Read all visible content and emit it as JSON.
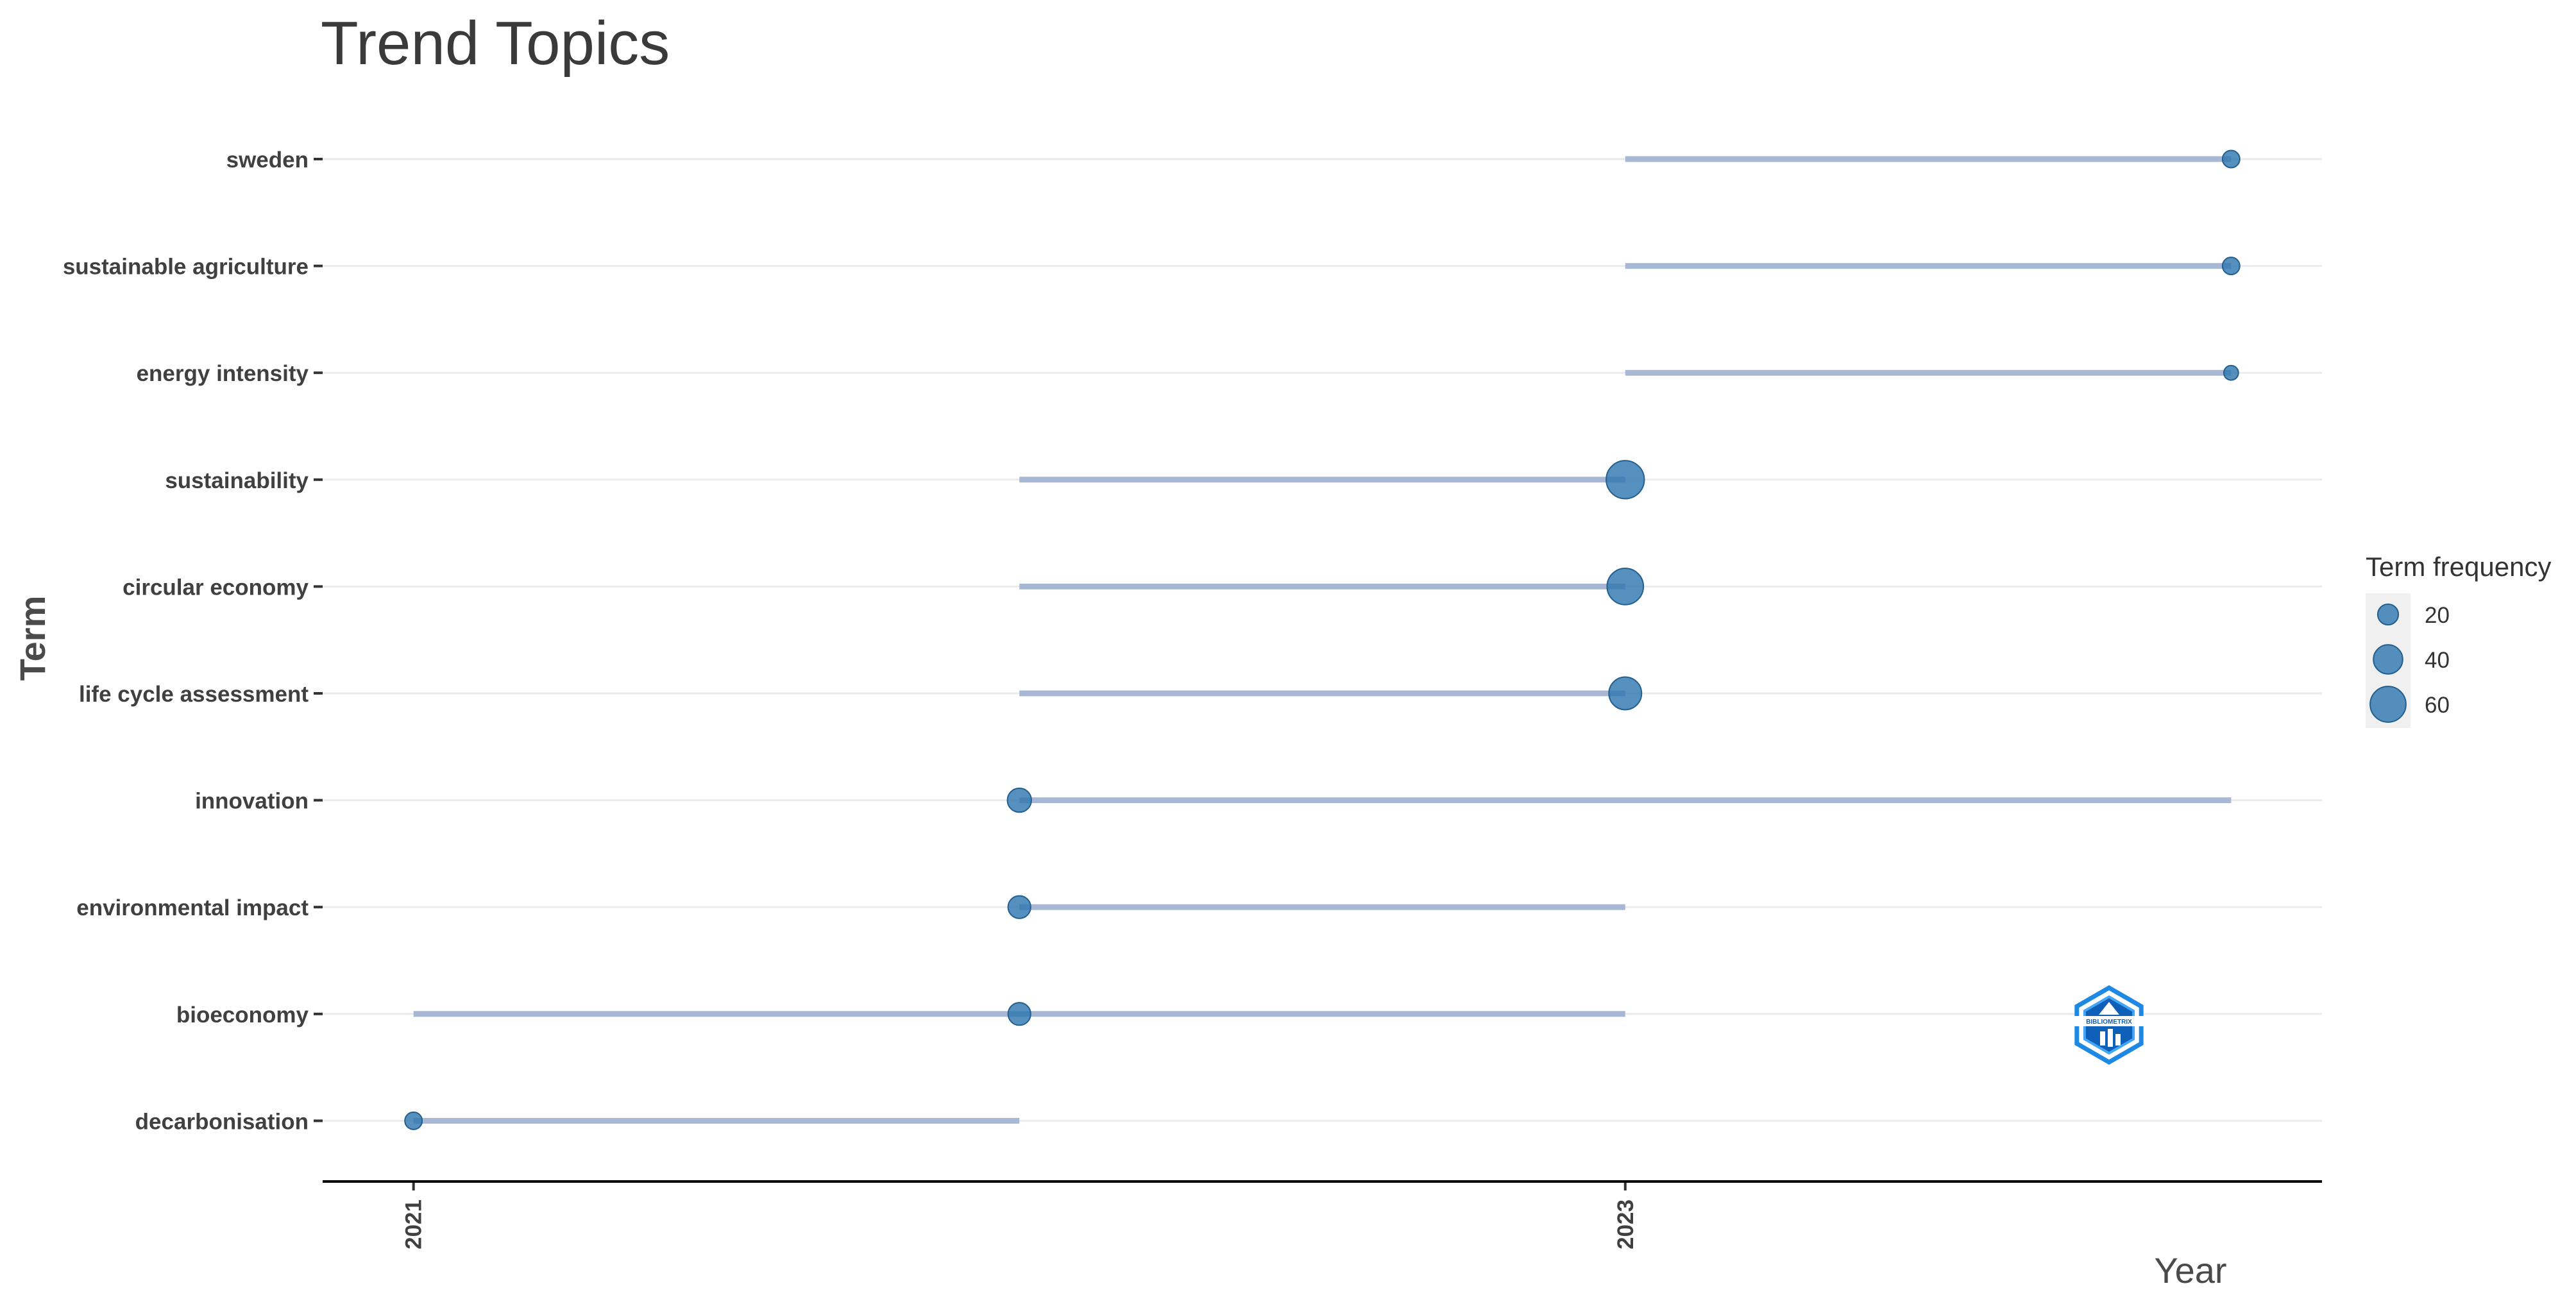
{
  "chart_data": {
    "type": "scatter",
    "title": "Trend Topics",
    "xlabel": "Year",
    "ylabel": "Term",
    "x_ticks": [
      2021,
      2023
    ],
    "xlim": [
      2020.85,
      2024.15
    ],
    "grid": "horizontal",
    "legend": {
      "title": "Term frequency",
      "placement": "right",
      "entries": [
        {
          "label": "20",
          "value": 20
        },
        {
          "label": "40",
          "value": 40
        },
        {
          "label": "60",
          "value": 60
        }
      ]
    },
    "terms": [
      {
        "term": "sweden",
        "year_q1": 2023,
        "year_median": 2024,
        "year_q3": 2024,
        "freq": 14
      },
      {
        "term": "sustainable agriculture",
        "year_q1": 2023,
        "year_median": 2024,
        "year_q3": 2024,
        "freq": 14
      },
      {
        "term": "energy intensity",
        "year_q1": 2023,
        "year_median": 2024,
        "year_q3": 2024,
        "freq": 10
      },
      {
        "term": "sustainability",
        "year_q1": 2022,
        "year_median": 2023,
        "year_q3": 2023,
        "freq": 68
      },
      {
        "term": "circular economy",
        "year_q1": 2022,
        "year_median": 2023,
        "year_q3": 2023,
        "freq": 62
      },
      {
        "term": "life cycle assessment",
        "year_q1": 2022,
        "year_median": 2023,
        "year_q3": 2023,
        "freq": 50
      },
      {
        "term": "innovation",
        "year_q1": 2022,
        "year_median": 2022,
        "year_q3": 2024,
        "freq": 27
      },
      {
        "term": "environmental impact",
        "year_q1": 2022,
        "year_median": 2022,
        "year_q3": 2023,
        "freq": 24
      },
      {
        "term": "bioeconomy",
        "year_q1": 2021,
        "year_median": 2022,
        "year_q3": 2023,
        "freq": 24
      },
      {
        "term": "decarbonisation",
        "year_q1": 2021,
        "year_median": 2021,
        "year_q3": 2022,
        "freq": 14
      }
    ],
    "colors": {
      "point": "#2f78b0",
      "segment": "#a8b8d4",
      "grid": "#ebebeb",
      "axis": "#000000",
      "legend_bg": "#f0f0f0"
    }
  },
  "logo": {
    "text": "BIBLIOMETRIX",
    "colors": {
      "outer": "#1e88e5",
      "inner": "#42a5f5",
      "fill": "#0d5fb8"
    }
  }
}
